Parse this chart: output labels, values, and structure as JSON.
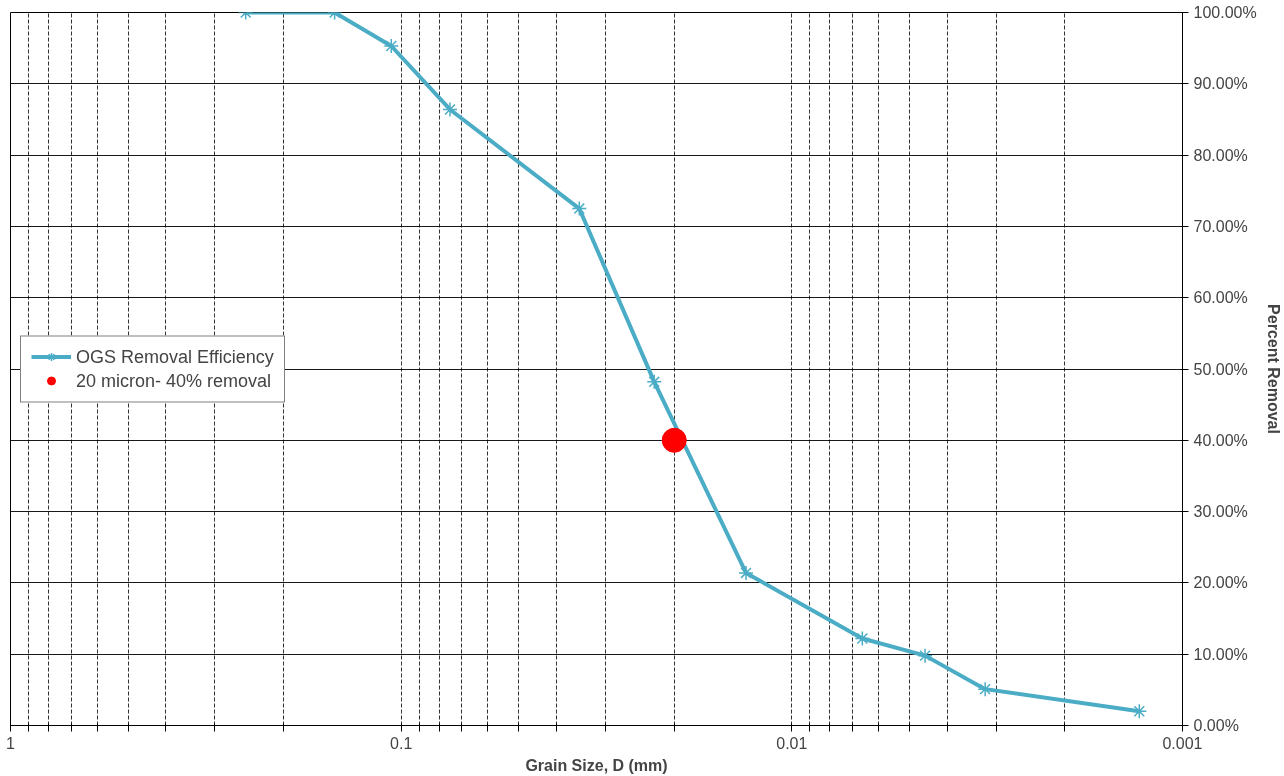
{
  "chart_data": {
    "type": "line",
    "xlabel": "Grain Size, D (mm)",
    "ylabel": "Percent Removal",
    "log": "x",
    "xlim": [
      1,
      0.001
    ],
    "ylim": [
      0,
      100
    ],
    "xticks": [
      1,
      {
        "value": 0.9,
        "label": null
      },
      {
        "value": 0.8,
        "label": null
      },
      {
        "value": 0.7,
        "label": null
      },
      {
        "value": 0.6,
        "label": null
      },
      {
        "value": 0.5,
        "label": null
      },
      {
        "value": 0.4,
        "label": null
      },
      {
        "value": 0.3,
        "label": null
      },
      {
        "value": 0.2,
        "label": null
      },
      0.1,
      {
        "value": 0.09,
        "label": null
      },
      {
        "value": 0.08,
        "label": null
      },
      {
        "value": 0.07,
        "label": null
      },
      {
        "value": 0.06,
        "label": null
      },
      {
        "value": 0.05,
        "label": null
      },
      {
        "value": 0.04,
        "label": null
      },
      {
        "value": 0.03,
        "label": null
      },
      {
        "value": 0.02,
        "label": null
      },
      0.01,
      {
        "value": 0.009,
        "label": null
      },
      {
        "value": 0.008,
        "label": null
      },
      {
        "value": 0.007,
        "label": null
      },
      {
        "value": 0.006,
        "label": null
      },
      {
        "value": 0.005,
        "label": null
      },
      {
        "value": 0.004,
        "label": null
      },
      {
        "value": 0.003,
        "label": null
      },
      {
        "value": 0.002,
        "label": null
      },
      0.001
    ],
    "yticks": [
      {
        "value": 0,
        "label": "0.00%"
      },
      {
        "value": 10,
        "label": "10.00%"
      },
      {
        "value": 20,
        "label": "20.00%"
      },
      {
        "value": 30,
        "label": "30.00%"
      },
      {
        "value": 40,
        "label": "40.00%"
      },
      {
        "value": 50,
        "label": "50.00%"
      },
      {
        "value": 60,
        "label": "60.00%"
      },
      {
        "value": 70,
        "label": "70.00%"
      },
      {
        "value": 80,
        "label": "80.00%"
      },
      {
        "value": 90,
        "label": "90.00%"
      },
      {
        "value": 100,
        "label": "100.00%"
      }
    ],
    "grid": true,
    "legend": "left",
    "series": [
      {
        "name": "OGS Removal Efficiency",
        "marker": "cross",
        "color": "#4bacc6",
        "x": [
          0.25,
          0.148,
          0.106,
          0.075,
          0.035,
          0.0225,
          0.0131,
          0.0066,
          0.00456,
          0.0032,
          0.00129
        ],
        "values": [
          100,
          100,
          95.3,
          86.4,
          72.5,
          48.2,
          21.4,
          12.2,
          9.8,
          5.1,
          2.0
        ]
      },
      {
        "name": "20 micron- 40% removal",
        "type": "scatter",
        "marker": "circle",
        "color": "#ff0000",
        "x": [
          0.02
        ],
        "values": [
          40
        ]
      }
    ]
  }
}
